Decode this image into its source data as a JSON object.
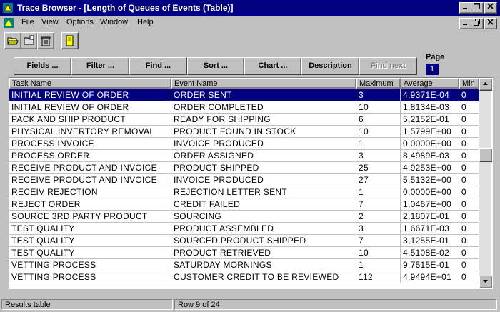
{
  "window": {
    "title": "Trace Browser - [Length of Queues of Events (Table)]"
  },
  "menu": {
    "items": [
      {
        "label": "File"
      },
      {
        "label": "View"
      },
      {
        "label": "Options"
      },
      {
        "label": "Window"
      },
      {
        "label": "Help"
      }
    ]
  },
  "toolbar": {
    "icons": [
      "open-icon",
      "folder-icon",
      "trash-icon",
      "note-icon"
    ]
  },
  "actions": {
    "fields": "Fields ...",
    "filter": "Filter ...",
    "find": "Find ...",
    "sort": "Sort ...",
    "chart": "Chart ...",
    "description": "Description",
    "find_next": "Find next"
  },
  "page": {
    "label": "Page",
    "number": "1"
  },
  "table": {
    "columns": [
      "Task Name",
      "Event Name",
      "Maximum",
      "Average",
      "Min"
    ],
    "rows": [
      [
        "INITIAL REVIEW OF ORDER",
        "ORDER SENT",
        "3",
        "4,9371E-04",
        "0"
      ],
      [
        "INITIAL REVIEW OF ORDER",
        "ORDER COMPLETED",
        "10",
        "1,8134E-03",
        "0"
      ],
      [
        "PACK AND SHIP PRODUCT",
        "READY FOR SHIPPING",
        "6",
        "5,2152E-01",
        "0"
      ],
      [
        "PHYSICAL INVERTORY REMOVAL",
        "PRODUCT FOUND IN STOCK",
        "10",
        "1,5799E+00",
        "0"
      ],
      [
        "PROCESS INVOICE",
        "INVOICE PRODUCED",
        "1",
        "0,0000E+00",
        "0"
      ],
      [
        "PROCESS ORDER",
        "ORDER ASSIGNED",
        "3",
        "8,4989E-03",
        "0"
      ],
      [
        "RECEIVE PRODUCT AND INVOICE",
        "PRODUCT SHIPPED",
        "25",
        "4,9253E+00",
        "0"
      ],
      [
        "RECEIVE PRODUCT AND INVOICE",
        "INVOICE PRODUCED",
        "27",
        "5,5132E+00",
        "0"
      ],
      [
        "RECEIV REJECTION",
        "REJECTION LETTER SENT",
        "1",
        "0,0000E+00",
        "0"
      ],
      [
        "REJECT ORDER",
        "CREDIT FAILED",
        "7",
        "1,0467E+00",
        "0"
      ],
      [
        "SOURCE 3RD PARTY PRODUCT",
        "SOURCING",
        "2",
        "2,1807E-01",
        "0"
      ],
      [
        "TEST QUALITY",
        "PRODUCT ASSEMBLED",
        "3",
        "1,6671E-03",
        "0"
      ],
      [
        "TEST QUALITY",
        "SOURCED PRODUCT SHIPPED",
        "7",
        "3,1255E-01",
        "0"
      ],
      [
        "TEST QUALITY",
        "PRODUCT RETRIEVED",
        "10",
        "4,5108E-02",
        "0"
      ],
      [
        "VETTING PROCESS",
        "SATURDAY MORNINGS",
        "1",
        "9,7515E-01",
        "0"
      ],
      [
        "VETTING PROCESS",
        "CUSTOMER CREDIT TO BE REVIEWED",
        "112",
        "4,9494E+01",
        "0"
      ]
    ]
  },
  "status": {
    "left": "Results table",
    "row": "Row 9 of 24"
  },
  "colors": {
    "selection": "#000080",
    "titlebar": "#000080",
    "face": "#c0c0c0"
  }
}
